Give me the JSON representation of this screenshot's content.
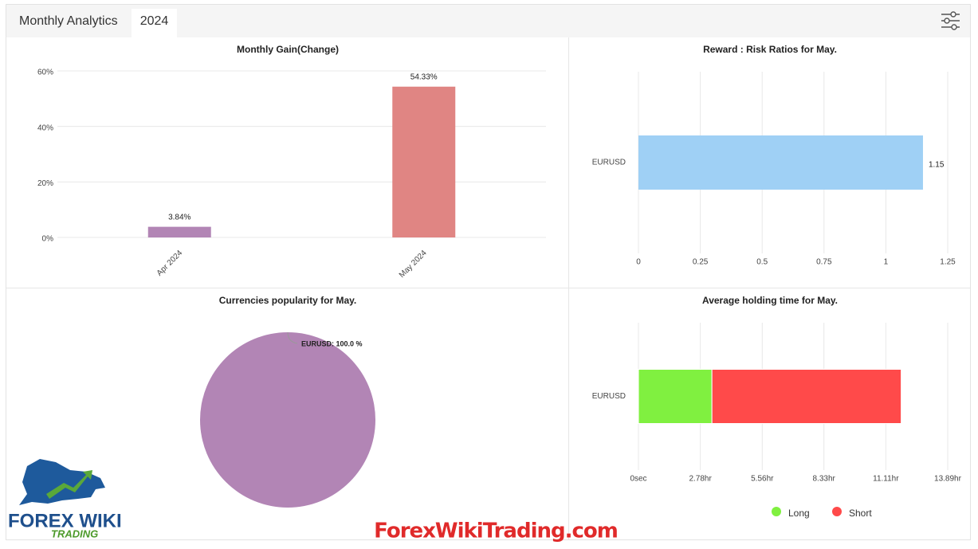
{
  "header": {
    "title": "Monthly Analytics",
    "tab": "2024"
  },
  "watermark": "ForexWikiTrading.com",
  "logo": {
    "name": "FOREX WIKI",
    "tagline": "TRADING"
  },
  "chart_data": [
    {
      "type": "bar",
      "title": "Monthly Gain(Change)",
      "categories": [
        "Apr 2024",
        "May 2024"
      ],
      "values": [
        3.84,
        54.33
      ],
      "value_labels": [
        "3.84%",
        "54.33%"
      ],
      "colors": [
        "#b285b5",
        "#e08583"
      ],
      "ylim": [
        0,
        60
      ],
      "yticks": [
        {
          "value": 0,
          "label": "0%"
        },
        {
          "value": 20,
          "label": "20%"
        },
        {
          "value": 40,
          "label": "40%"
        },
        {
          "value": 60,
          "label": "60%"
        }
      ],
      "grid": true
    },
    {
      "type": "hbar",
      "title": "Reward : Risk Ratios for May.",
      "categories": [
        "EURUSD"
      ],
      "values": [
        1.15
      ],
      "color": "#9fd0f5",
      "xlim": [
        0,
        1.25
      ],
      "xticks": [
        0,
        0.25,
        0.5,
        0.75,
        1,
        1.25
      ],
      "grid": true
    },
    {
      "type": "pie",
      "title": "Currencies popularity for May.",
      "categories": [
        "EURUSD"
      ],
      "values": [
        100
      ],
      "value_labels": [
        "EURUSD: 100.0 %"
      ],
      "colors": [
        "#b285b5"
      ]
    },
    {
      "type": "stackedbar",
      "title": "Average holding time for May.",
      "categories": [
        "EURUSD"
      ],
      "series": [
        {
          "name": "Long",
          "color": "#80f040",
          "values": [
            3.3
          ]
        },
        {
          "name": "Short",
          "color": "#ff4a4a",
          "values": [
            8.5
          ]
        }
      ],
      "xlim": [
        0,
        13.89
      ],
      "xticks": [
        {
          "value": 0,
          "label": "0sec"
        },
        {
          "value": 2.78,
          "label": "2.78hr"
        },
        {
          "value": 5.56,
          "label": "5.56hr"
        },
        {
          "value": 8.33,
          "label": "8.33hr"
        },
        {
          "value": 11.11,
          "label": "11.11hr"
        },
        {
          "value": 13.89,
          "label": "13.89hr"
        }
      ],
      "grid": true,
      "legend": "bottom"
    }
  ]
}
